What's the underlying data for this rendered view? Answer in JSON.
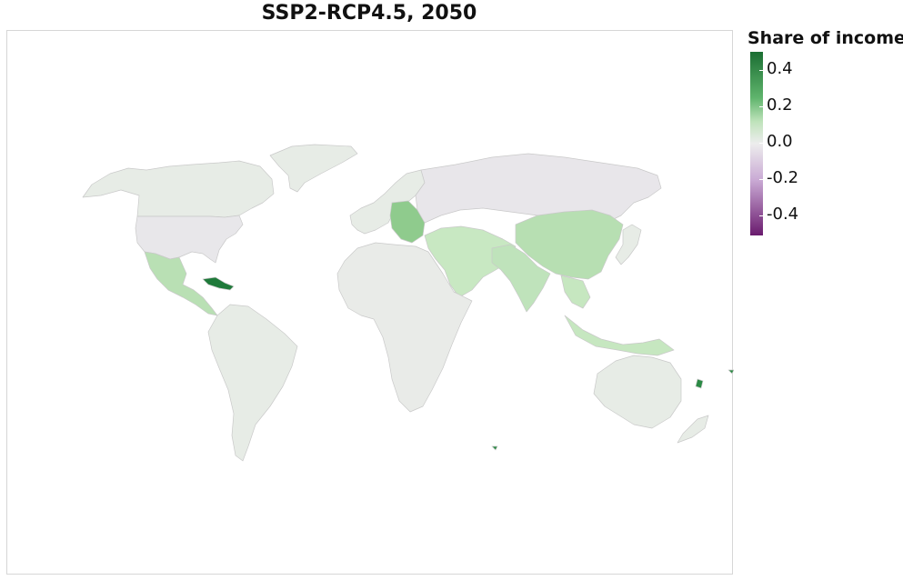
{
  "title": "SSP2-RCP4.5, 2050",
  "legend": {
    "title": "Share of income",
    "ticks": [
      "0.4",
      "0.2",
      "0.0",
      "-0.2",
      "-0.4"
    ],
    "colors": {
      "max": "#1b6e33",
      "high": "#5fb46c",
      "mid_pos": "#bfe3bb",
      "zero": "#ededed",
      "mid_neg": "#c9a9d4",
      "min": "#6a1b6e"
    }
  },
  "map_data": {
    "region_fill": {
      "north_america": "#e7ece6",
      "usa": "#e8e7ea",
      "greenland": "#e7ece6",
      "mexico_central_america": "#b9e0b4",
      "caribbean": "#1f7a3a",
      "south_america": "#e7ece6",
      "western_europe": "#e7ece6",
      "central_europe": "#8fcb8d",
      "russia": "#e8e6ea",
      "middle_east": "#c8e8c2",
      "africa": "#e9ebe8",
      "south_asia": "#bfe3bb",
      "china": "#b7dfb2",
      "southeast_asia": "#c6e7c0",
      "japan": "#e7ece6",
      "australia": "#e7ece6",
      "new_zealand": "#e7ece6",
      "pacific_islands": "#2b8a45"
    }
  }
}
